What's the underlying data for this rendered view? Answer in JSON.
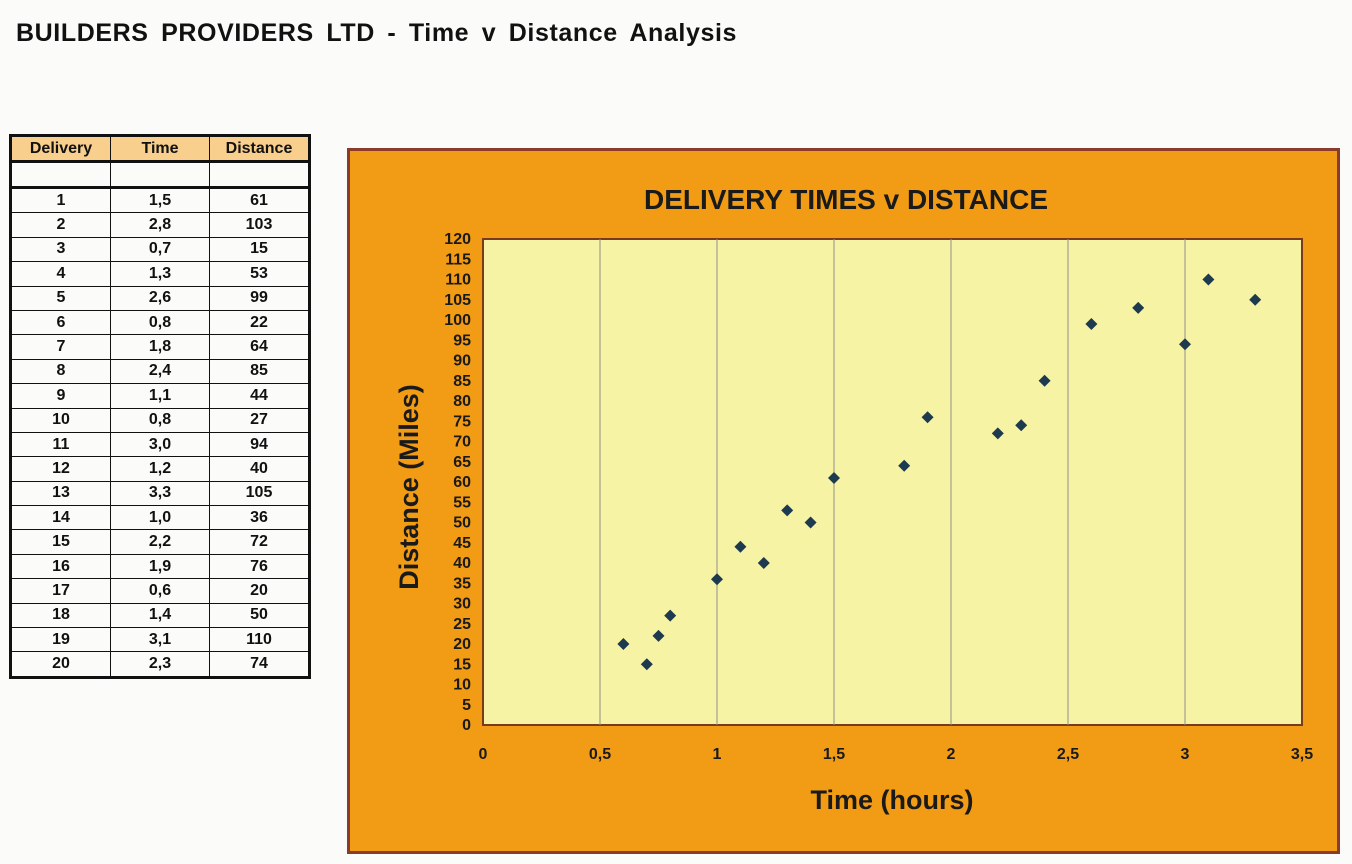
{
  "page": {
    "title": "BUILDERS PROVIDERS LTD - Time v Distance Analysis"
  },
  "table": {
    "headers": [
      "Delivery",
      "Time",
      "Distance"
    ],
    "rows": [
      [
        "1",
        "1,5",
        "61"
      ],
      [
        "2",
        "2,8",
        "103"
      ],
      [
        "3",
        "0,7",
        "15"
      ],
      [
        "4",
        "1,3",
        "53"
      ],
      [
        "5",
        "2,6",
        "99"
      ],
      [
        "6",
        "0,8",
        "22"
      ],
      [
        "7",
        "1,8",
        "64"
      ],
      [
        "8",
        "2,4",
        "85"
      ],
      [
        "9",
        "1,1",
        "44"
      ],
      [
        "10",
        "0,8",
        "27"
      ],
      [
        "11",
        "3,0",
        "94"
      ],
      [
        "12",
        "1,2",
        "40"
      ],
      [
        "13",
        "3,3",
        "105"
      ],
      [
        "14",
        "1,0",
        "36"
      ],
      [
        "15",
        "2,2",
        "72"
      ],
      [
        "16",
        "1,9",
        "76"
      ],
      [
        "17",
        "0,6",
        "20"
      ],
      [
        "18",
        "1,4",
        "50"
      ],
      [
        "19",
        "3,1",
        "110"
      ],
      [
        "20",
        "2,3",
        "74"
      ]
    ]
  },
  "colors": {
    "frame": "#f29b14",
    "frame_border": "#8b3b2b",
    "plot_background": "#f7f3a4",
    "marker": "#1d3a4e",
    "table_header": "#f8cf8c"
  },
  "chart_data": {
    "type": "scatter",
    "title": "DELIVERY TIMES v DISTANCE",
    "xlabel": "Time (hours)",
    "ylabel": "Distance (Miles)",
    "xlim": [
      0,
      3.5
    ],
    "ylim": [
      0,
      120
    ],
    "x_ticks": [
      "0",
      "0,5",
      "1",
      "1,5",
      "2",
      "2,5",
      "3",
      "3,5"
    ],
    "y_ticks": [
      "0",
      "5",
      "10",
      "15",
      "20",
      "25",
      "30",
      "35",
      "40",
      "45",
      "50",
      "55",
      "60",
      "65",
      "70",
      "75",
      "80",
      "85",
      "90",
      "95",
      "100",
      "105",
      "110",
      "115",
      "120"
    ],
    "grid": "vertical",
    "marker": "diamond",
    "points": [
      {
        "x": 1.5,
        "y": 61
      },
      {
        "x": 2.8,
        "y": 103
      },
      {
        "x": 0.7,
        "y": 15
      },
      {
        "x": 1.3,
        "y": 53
      },
      {
        "x": 2.6,
        "y": 99
      },
      {
        "x": 0.75,
        "y": 22
      },
      {
        "x": 1.8,
        "y": 64
      },
      {
        "x": 2.4,
        "y": 85
      },
      {
        "x": 1.1,
        "y": 44
      },
      {
        "x": 0.8,
        "y": 27
      },
      {
        "x": 3.0,
        "y": 94
      },
      {
        "x": 1.2,
        "y": 40
      },
      {
        "x": 3.3,
        "y": 105
      },
      {
        "x": 1.0,
        "y": 36
      },
      {
        "x": 2.2,
        "y": 72
      },
      {
        "x": 1.9,
        "y": 76
      },
      {
        "x": 0.6,
        "y": 20
      },
      {
        "x": 1.4,
        "y": 50
      },
      {
        "x": 3.1,
        "y": 110
      },
      {
        "x": 2.3,
        "y": 74
      }
    ]
  }
}
